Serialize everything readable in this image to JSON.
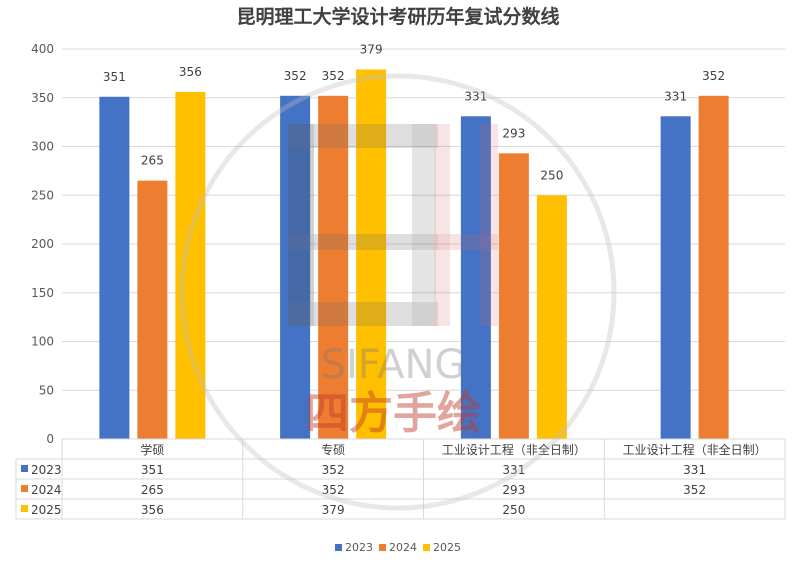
{
  "chart_data": {
    "type": "bar",
    "title": "昆明理工大学设计考研历年复试分数线",
    "categories": [
      "学硕",
      "专硕",
      "工业设计工程（非全日制）",
      "工业设计工程（非全日制）"
    ],
    "ylim": [
      0,
      400
    ],
    "yticks": [
      0,
      50,
      100,
      150,
      200,
      250,
      300,
      350,
      400
    ],
    "grid": true,
    "legend_position": "bottom",
    "has_data_table": true,
    "series": [
      {
        "name": "2023",
        "color": "#4472c4",
        "values": [
          351,
          352,
          331,
          331
        ]
      },
      {
        "name": "2024",
        "color": "#ed7d31",
        "values": [
          265,
          352,
          293,
          352
        ]
      },
      {
        "name": "2025",
        "color": "#ffc000",
        "values": [
          356,
          379,
          250,
          null
        ]
      }
    ]
  },
  "watermark": {
    "brand": "SIFANG",
    "cn": "四方手绘",
    "logo_icon": "sifang-logo-icon"
  }
}
